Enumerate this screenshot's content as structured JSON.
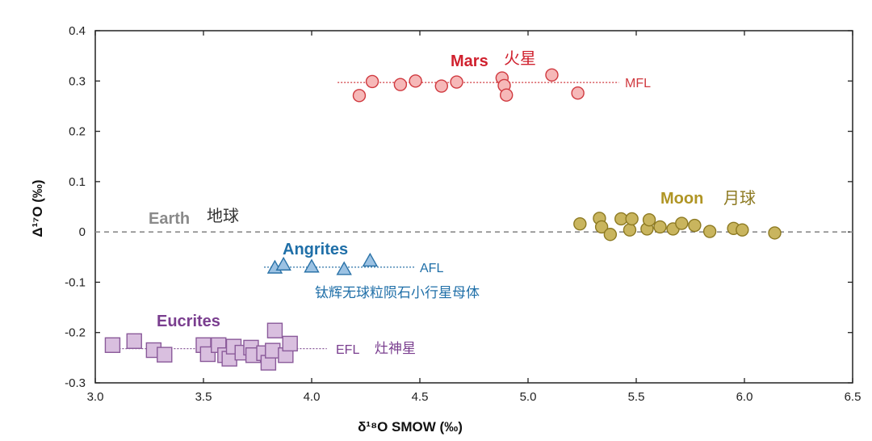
{
  "chart_data": {
    "type": "scatter",
    "xlabel": "δ¹⁸O SMOW (‰)",
    "ylabel": "Δ¹⁷O (‰)",
    "xlim": [
      3.0,
      6.5
    ],
    "ylim": [
      -0.3,
      0.4
    ],
    "x_tick_labels": [
      "3.0",
      "3.5",
      "4.0",
      "4.5",
      "5.0",
      "5.5",
      "6.0",
      "6.5"
    ],
    "y_tick_labels": [
      "0.4",
      "0.3",
      "0.2",
      "0.1",
      "0",
      "-0.1",
      "-0.2",
      "-0.3"
    ],
    "x_tick_values": [
      3.0,
      3.5,
      4.0,
      4.5,
      5.0,
      5.5,
      6.0,
      6.5
    ],
    "y_tick_values": [
      0.4,
      0.3,
      0.2,
      0.1,
      0,
      -0.1,
      -0.2,
      -0.3
    ],
    "grid": false,
    "series": [
      {
        "name": "Mars",
        "name_cn": "火星",
        "marker": "circle",
        "fill": "#f6b8b8",
        "stroke": "#d0393f",
        "title_color": "#d0212e",
        "fractionation_line": {
          "label": "MFL",
          "y": 0.297,
          "x_range": [
            4.12,
            5.42
          ]
        },
        "points": [
          [
            4.22,
            0.271
          ],
          [
            4.28,
            0.299
          ],
          [
            4.41,
            0.293
          ],
          [
            4.48,
            0.3
          ],
          [
            4.6,
            0.29
          ],
          [
            4.67,
            0.298
          ],
          [
            4.88,
            0.306
          ],
          [
            4.89,
            0.291
          ],
          [
            4.9,
            0.272
          ],
          [
            5.11,
            0.312
          ],
          [
            5.23,
            0.276
          ]
        ]
      },
      {
        "name": "Moon",
        "name_cn": "月球",
        "marker": "circle",
        "fill": "#c9b55e",
        "stroke": "#8d7a22",
        "title_color": "#b09524",
        "points": [
          [
            5.24,
            0.016
          ],
          [
            5.33,
            0.027
          ],
          [
            5.34,
            0.01
          ],
          [
            5.38,
            -0.005
          ],
          [
            5.43,
            0.026
          ],
          [
            5.47,
            0.004
          ],
          [
            5.48,
            0.026
          ],
          [
            5.55,
            0.006
          ],
          [
            5.56,
            0.024
          ],
          [
            5.61,
            0.01
          ],
          [
            5.67,
            0.006
          ],
          [
            5.71,
            0.017
          ],
          [
            5.77,
            0.013
          ],
          [
            5.84,
            0.001
          ],
          [
            5.95,
            0.007
          ],
          [
            5.99,
            0.004
          ],
          [
            6.14,
            -0.002
          ]
        ]
      },
      {
        "name": "Angrites",
        "name_cn": "钛辉无球粒陨石小行星母体",
        "marker": "triangle",
        "fill": "#9cc2e3",
        "stroke": "#2b73a8",
        "title_color": "#1f6fa8",
        "fractionation_line": {
          "label": "AFL",
          "y": -0.07,
          "x_range": [
            3.78,
            4.48
          ]
        },
        "points": [
          [
            3.83,
            -0.072
          ],
          [
            3.87,
            -0.066
          ],
          [
            4.0,
            -0.07
          ],
          [
            4.15,
            -0.075
          ],
          [
            4.27,
            -0.058
          ]
        ]
      },
      {
        "name": "Eucrites",
        "name_cn": "灶神星",
        "marker": "square",
        "fill": "#d9bfdf",
        "stroke": "#8a5a9a",
        "title_color": "#7a3e8f",
        "fractionation_line": {
          "label": "EFL",
          "y": -0.232,
          "x_range": [
            3.05,
            4.07
          ]
        },
        "points": [
          [
            3.08,
            -0.225
          ],
          [
            3.18,
            -0.217
          ],
          [
            3.27,
            -0.235
          ],
          [
            3.32,
            -0.244
          ],
          [
            3.5,
            -0.225
          ],
          [
            3.52,
            -0.243
          ],
          [
            3.57,
            -0.225
          ],
          [
            3.6,
            -0.245
          ],
          [
            3.62,
            -0.252
          ],
          [
            3.64,
            -0.228
          ],
          [
            3.68,
            -0.24
          ],
          [
            3.72,
            -0.23
          ],
          [
            3.73,
            -0.245
          ],
          [
            3.78,
            -0.241
          ],
          [
            3.8,
            -0.26
          ],
          [
            3.82,
            -0.236
          ],
          [
            3.83,
            -0.196
          ],
          [
            3.88,
            -0.245
          ],
          [
            3.9,
            -0.222
          ]
        ]
      }
    ],
    "reference_lines": [
      {
        "name": "Earth",
        "name_cn": "地球",
        "y": 0,
        "style": "dashed",
        "color": "#8a8a8a"
      }
    ]
  }
}
